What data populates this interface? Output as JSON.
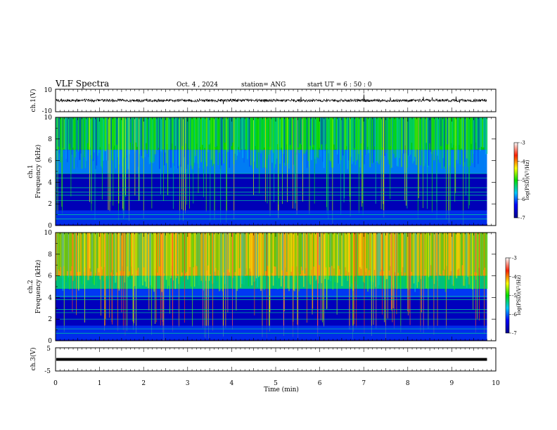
{
  "header": {
    "title": "VLF Spectra",
    "date": "Oct. 4 , 2024",
    "station": "station= ANG",
    "start": "start  UT =   6 : 50 : 0"
  },
  "chart_data": [
    {
      "type": "line",
      "name": "ch1-waveform",
      "ylabel": "ch.1(V)",
      "ylim": [
        -10,
        10
      ],
      "yticks": [
        "10",
        "-10"
      ],
      "xlim": [
        0,
        10
      ],
      "level": 0,
      "color": "#000000"
    },
    {
      "type": "heatmap",
      "name": "ch1-spectrogram",
      "ylabel_top": "ch.1",
      "ylabel": "Frequency (kHz)",
      "ylim": [
        0,
        10
      ],
      "yticks": [
        "0",
        "2",
        "4",
        "6",
        "8",
        "10"
      ],
      "xlim": [
        0,
        10
      ],
      "colorbar": {
        "label": "log(PSD)(V²/Hz)",
        "ticks": [
          "-3",
          "-4",
          "-5",
          "-6",
          "-7"
        ],
        "range": [
          -7,
          -3
        ]
      },
      "horizontal_lines_khz": [
        0.6,
        1.0,
        2.3,
        2.8,
        3.1,
        3.5,
        4.4,
        4.8
      ],
      "data_end_min": 9.8
    },
    {
      "type": "heatmap",
      "name": "ch2-spectrogram",
      "ylabel_top": "ch.2",
      "ylabel": "Frequency (kHz)",
      "ylim": [
        0,
        10
      ],
      "yticks": [
        "0",
        "2",
        "4",
        "6",
        "8",
        "10"
      ],
      "xlim": [
        0,
        10
      ],
      "colorbar": {
        "label": "log(PSD)(V²/Hz)",
        "ticks": [
          "-3",
          "-4",
          "-5",
          "-6",
          "-7"
        ],
        "range": [
          -7,
          -3
        ]
      },
      "horizontal_lines_khz": [
        0.7,
        1.1,
        2.0,
        2.6,
        2.9,
        3.8,
        4.1
      ],
      "data_end_min": 9.8
    },
    {
      "type": "line",
      "name": "ch3-waveform",
      "ylabel": "ch.3(V)",
      "ylim": [
        -5,
        5
      ],
      "yticks": [
        "5",
        "-5"
      ],
      "xlim": [
        0,
        10
      ],
      "level": 0,
      "color": "#000000"
    }
  ],
  "x_axis": {
    "label": "Time (min)",
    "ticks": [
      "0",
      "1",
      "2",
      "3",
      "4",
      "5",
      "6",
      "7",
      "8",
      "9",
      "10"
    ]
  }
}
